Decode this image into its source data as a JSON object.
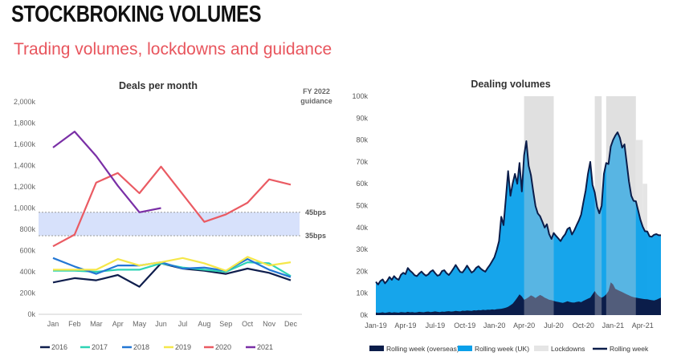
{
  "header": {
    "title": "STOCKBROKING VOLUMES",
    "subtitle": "Trading volumes, lockdowns and guidance"
  },
  "colors": {
    "title": "#111111",
    "subtitle": "#e8555d",
    "guidance_band": "#d7e1fb"
  },
  "chart_data": [
    {
      "type": "line",
      "title": "Deals per month",
      "categories": [
        "Jan",
        "Feb",
        "Mar",
        "Apr",
        "May",
        "Jun",
        "Jul",
        "Aug",
        "Sep",
        "Oct",
        "Nov",
        "Dec"
      ],
      "ylim": [
        0,
        2000000
      ],
      "yticks": [
        0,
        200000,
        400000,
        600000,
        800000,
        1000000,
        1200000,
        1400000,
        1600000,
        1800000,
        2000000
      ],
      "ytick_labels": [
        "0k",
        "200k",
        "400k",
        "600k",
        "800k",
        "1,000k",
        "1,200k",
        "1,400k",
        "1,600k",
        "1,800k",
        "2,000k"
      ],
      "grid": false,
      "legend": "bottom",
      "guidance": {
        "label": [
          "FY 2022",
          "guidance"
        ],
        "low": 740000,
        "high": 960000,
        "low_label": "35bps",
        "high_label": "45bps"
      },
      "series": [
        {
          "name": "2016",
          "color": "#0f1e4d",
          "values": [
            300000,
            340000,
            320000,
            370000,
            260000,
            480000,
            430000,
            410000,
            380000,
            430000,
            390000,
            320000
          ]
        },
        {
          "name": "2017",
          "color": "#2ed3b4",
          "values": [
            410000,
            410000,
            400000,
            420000,
            420000,
            480000,
            440000,
            420000,
            400000,
            490000,
            480000,
            360000
          ]
        },
        {
          "name": "2018",
          "color": "#2377d4",
          "values": [
            530000,
            450000,
            380000,
            460000,
            460000,
            490000,
            430000,
            440000,
            410000,
            520000,
            420000,
            350000
          ]
        },
        {
          "name": "2019",
          "color": "#f5e74a",
          "values": [
            420000,
            420000,
            420000,
            520000,
            460000,
            490000,
            530000,
            480000,
            410000,
            540000,
            460000,
            490000
          ]
        },
        {
          "name": "2020",
          "color": "#ea5b63",
          "values": [
            640000,
            750000,
            1240000,
            1330000,
            1140000,
            1390000,
            1130000,
            870000,
            940000,
            1050000,
            1270000,
            1220000
          ]
        },
        {
          "name": "2021",
          "color": "#7a2fa6",
          "values": [
            1570000,
            1720000,
            1490000,
            1210000,
            960000,
            1000000,
            null,
            null,
            null,
            null,
            null,
            null
          ]
        }
      ]
    },
    {
      "type": "area",
      "title": "Dealing volumes",
      "x_start": "2019-01",
      "x_step_days": 7,
      "xtick_labels": [
        "Jan-19",
        "Apr-19",
        "Jul-19",
        "Oct-19",
        "Jan-20",
        "Apr-20",
        "Jul-20",
        "Oct-20",
        "Jan-21",
        "Apr-21"
      ],
      "ylim": [
        0,
        100000
      ],
      "ytick_labels": [
        "0k",
        "10k",
        "20k",
        "30k",
        "40k",
        "50k",
        "60k",
        "70k",
        "80k",
        "90k",
        "100k"
      ],
      "legend": "bottom",
      "lockdowns": [
        {
          "start_week": 65,
          "end_week": 78
        },
        {
          "start_week": 96,
          "end_week": 99
        },
        {
          "start_week": 101,
          "end_week": 114
        }
      ],
      "lockdown_heights": [
        100000,
        100000,
        100000
      ],
      "lockdown_tail": {
        "start_week": 114,
        "end_week": 117,
        "height": 80000
      },
      "lockdown_tail2": {
        "start_week": 117,
        "end_week": 119,
        "height": 60000
      },
      "series": [
        {
          "name": "Rolling week (overseas)",
          "color": "#0b1d4a",
          "values": [
            1200,
            1000,
            1100,
            1300,
            1000,
            1200,
            1400,
            1100,
            1300,
            1200,
            1100,
            1400,
            1300,
            1200,
            1500,
            1300,
            1400,
            1200,
            1300,
            1500,
            1400,
            1300,
            1500,
            1600,
            1400,
            1500,
            1700,
            1500,
            1400,
            1600,
            1500,
            1700,
            1800,
            1600,
            1700,
            1900,
            1800,
            1700,
            2000,
            1900,
            2100,
            2000,
            1900,
            2200,
            2100,
            2300,
            2200,
            2400,
            2300,
            2500,
            2400,
            2600,
            2500,
            2700,
            2800,
            2900,
            3100,
            3400,
            3800,
            4500,
            5200,
            6500,
            8000,
            9500,
            8500,
            7000,
            7500,
            8200,
            9000,
            8500,
            7800,
            8500,
            9200,
            8700,
            8000,
            7500,
            7000,
            6800,
            6500,
            6200,
            6000,
            5800,
            5600,
            5900,
            6300,
            6000,
            5800,
            5700,
            6000,
            6200,
            5900,
            6500,
            7000,
            7500,
            8000,
            9500,
            11000,
            9500,
            8500,
            8000,
            8500,
            9500,
            11000,
            15000,
            14000,
            12000,
            11500,
            11000,
            10500,
            10000,
            9500,
            9000,
            8500,
            8200,
            8000,
            7800,
            7600,
            7400,
            7300,
            7200,
            7000,
            6800,
            6700,
            7000,
            7500,
            8000
          ]
        },
        {
          "name": "Rolling week (UK)",
          "color": "#0aa0ea",
          "values": [
            14000,
            13000,
            14500,
            15000,
            13500,
            14500,
            16000,
            15000,
            16500,
            15500,
            15000,
            17000,
            18000,
            17500,
            20000,
            19000,
            18000,
            17000,
            16500,
            17500,
            18500,
            17500,
            16500,
            17000,
            18500,
            19000,
            17500,
            16500,
            17000,
            18500,
            19000,
            17500,
            16500,
            18000,
            19500,
            21000,
            19500,
            18000,
            17500,
            19000,
            20500,
            19000,
            17500,
            18000,
            19500,
            20000,
            19000,
            18000,
            17500,
            19000,
            20500,
            22000,
            24000,
            27000,
            31000,
            42000,
            38000,
            50000,
            62000,
            50000,
            55000,
            58000,
            52000,
            60000,
            48000,
            66000,
            72000,
            60000,
            55000,
            48000,
            42000,
            38000,
            36000,
            34000,
            32000,
            34000,
            30000,
            28000,
            31000,
            30000,
            29000,
            28000,
            30000,
            31000,
            33000,
            34000,
            31000,
            33000,
            35000,
            37000,
            40000,
            45000,
            50000,
            57000,
            62000,
            50000,
            45000,
            40000,
            38000,
            42000,
            56000,
            60000,
            58000,
            62000,
            66000,
            70000,
            72000,
            70000,
            66000,
            68000,
            60000,
            52000,
            46000,
            44000,
            44000,
            40000,
            36000,
            33000,
            31000,
            31000,
            29000,
            29000,
            30000,
            30000,
            29000,
            28500
          ]
        },
        {
          "name": "Lockdowns",
          "color": "#e5e5e5"
        },
        {
          "name": "Rolling week",
          "color": "#0b1d4a"
        }
      ]
    }
  ]
}
